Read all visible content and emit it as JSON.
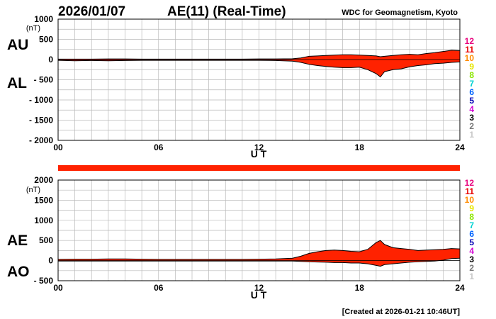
{
  "header": {
    "date": "2026/01/07",
    "title": "AE(11) (Real-Time)",
    "source": "WDC for Geomagnetism, Kyoto"
  },
  "footer": {
    "created": "[Created at 2026-01-21 10:46UT]"
  },
  "colors": {
    "fill": "#ff2200",
    "outline": "#000000",
    "grid": "#b8b8b8",
    "coverage_bar": "#ff2200"
  },
  "station_legend": [
    {
      "label": "12",
      "color": "#e8007c"
    },
    {
      "label": "11",
      "color": "#e80000"
    },
    {
      "label": "10",
      "color": "#ff8c00"
    },
    {
      "label": "9",
      "color": "#e6e600"
    },
    {
      "label": "8",
      "color": "#8ce600"
    },
    {
      "label": "7",
      "color": "#00d2d2"
    },
    {
      "label": "6",
      "color": "#0064ff"
    },
    {
      "label": "5",
      "color": "#0000b4"
    },
    {
      "label": "4",
      "color": "#d200d2"
    },
    {
      "label": "3",
      "color": "#000000"
    },
    {
      "label": "2",
      "color": "#787878"
    },
    {
      "label": "1",
      "color": "#c8c8c8"
    }
  ],
  "chart_data": [
    {
      "type": "area",
      "upper_label": "AU",
      "lower_label": "AL",
      "ylabel_unit": "(nT)",
      "xlabel": "U T",
      "xlim": [
        0,
        24
      ],
      "ylim": [
        -2000,
        1000
      ],
      "x_ticks": [
        0,
        6,
        12,
        18,
        24
      ],
      "x_tick_labels": [
        "00",
        "06",
        "12",
        "18",
        "24"
      ],
      "y_ticks": [
        -2000,
        -1500,
        -1000,
        -500,
        0,
        500,
        1000
      ],
      "y_tick_labels": [
        "- 2000",
        "- 1500",
        "- 1000",
        "- 500",
        "0",
        "500",
        "1000"
      ],
      "x": [
        0,
        1,
        2,
        3,
        4,
        5,
        6,
        7,
        8,
        9,
        10,
        11,
        12,
        13,
        14,
        14.5,
        15,
        15.5,
        16,
        16.5,
        17,
        17.5,
        18,
        18.5,
        19,
        19.25,
        19.5,
        20,
        20.5,
        21,
        21.5,
        22,
        22.5,
        23,
        23.5,
        24
      ],
      "series": [
        {
          "name": "AU",
          "values": [
            10,
            10,
            10,
            15,
            15,
            10,
            10,
            10,
            10,
            10,
            10,
            10,
            15,
            15,
            20,
            40,
            80,
            90,
            100,
            110,
            120,
            120,
            110,
            100,
            90,
            70,
            80,
            100,
            120,
            130,
            120,
            150,
            170,
            200,
            230,
            220
          ]
        },
        {
          "name": "AL",
          "values": [
            -20,
            -30,
            -25,
            -30,
            -25,
            -20,
            -20,
            -20,
            -20,
            -20,
            -20,
            -20,
            -20,
            -25,
            -40,
            -70,
            -120,
            -150,
            -170,
            -190,
            -200,
            -200,
            -190,
            -250,
            -350,
            -430,
            -300,
            -250,
            -230,
            -180,
            -150,
            -130,
            -100,
            -90,
            -70,
            -60
          ]
        }
      ]
    },
    {
      "type": "area",
      "upper_label": "AE",
      "lower_label": "AO",
      "ylabel_unit": "(nT)",
      "xlabel": "U T",
      "xlim": [
        0,
        24
      ],
      "ylim": [
        -500,
        2000
      ],
      "x_ticks": [
        0,
        6,
        12,
        18,
        24
      ],
      "x_tick_labels": [
        "00",
        "06",
        "12",
        "18",
        "24"
      ],
      "y_ticks": [
        -500,
        0,
        500,
        1000,
        1500,
        2000
      ],
      "y_tick_labels": [
        "- 500",
        "0",
        "500",
        "1000",
        "1500",
        "2000"
      ],
      "x": [
        0,
        1,
        2,
        3,
        4,
        5,
        6,
        7,
        8,
        9,
        10,
        11,
        12,
        13,
        14,
        14.5,
        15,
        15.5,
        16,
        16.5,
        17,
        17.5,
        18,
        18.5,
        19,
        19.25,
        19.5,
        20,
        20.5,
        21,
        21.5,
        22,
        22.5,
        23,
        23.5,
        24
      ],
      "series": [
        {
          "name": "AE",
          "values": [
            30,
            35,
            35,
            40,
            40,
            35,
            30,
            30,
            30,
            30,
            30,
            30,
            35,
            40,
            60,
            110,
            180,
            220,
            250,
            260,
            250,
            230,
            220,
            280,
            450,
            500,
            400,
            320,
            300,
            280,
            250,
            260,
            270,
            280,
            300,
            290
          ]
        },
        {
          "name": "AO",
          "values": [
            -10,
            -10,
            -10,
            -10,
            -10,
            -10,
            -10,
            -10,
            -10,
            -10,
            -10,
            -10,
            -10,
            -10,
            -10,
            -20,
            -30,
            -35,
            -40,
            -50,
            -50,
            -60,
            -60,
            -80,
            -120,
            -140,
            -100,
            -80,
            -60,
            -40,
            -30,
            -20,
            -10,
            10,
            50,
            60
          ]
        }
      ]
    }
  ]
}
